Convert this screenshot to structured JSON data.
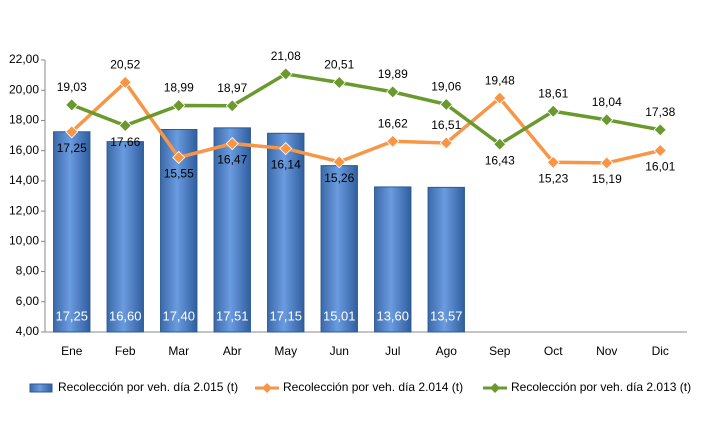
{
  "chart_data": {
    "type": "combo",
    "categories": [
      "Ene",
      "Feb",
      "Mar",
      "Abr",
      "May",
      "Jun",
      "Jul",
      "Ago",
      "Sep",
      "Oct",
      "Nov",
      "Dic"
    ],
    "ylim": [
      4,
      22
    ],
    "yticks": [
      {
        "value": 4,
        "label": "4,00"
      },
      {
        "value": 6,
        "label": "6,00"
      },
      {
        "value": 8,
        "label": "8,00"
      },
      {
        "value": 10,
        "label": "10,00"
      },
      {
        "value": 12,
        "label": "12,00"
      },
      {
        "value": 14,
        "label": "14,00"
      },
      {
        "value": 16,
        "label": "16,00"
      },
      {
        "value": 18,
        "label": "18,00"
      },
      {
        "value": 20,
        "label": "20,00"
      },
      {
        "value": 22,
        "label": "22,00"
      }
    ],
    "grid": false,
    "legend": "bottom",
    "series": [
      {
        "name": "Recolección por veh. día 2.015 (t)",
        "type": "bar",
        "color": "#4f81bd",
        "values": [
          17.25,
          16.6,
          17.4,
          17.51,
          17.15,
          15.01,
          13.6,
          13.57,
          null,
          null,
          null,
          null
        ],
        "value_labels": [
          "17,25",
          "16,60",
          "17,40",
          "17,51",
          "17,15",
          "15,01",
          "13,60",
          "13,57",
          null,
          null,
          null,
          null
        ]
      },
      {
        "name": "Recolección por veh. día 2.014 (t)",
        "type": "line",
        "color": "#f79646",
        "values": [
          17.25,
          20.52,
          15.55,
          16.47,
          16.14,
          15.26,
          16.62,
          16.51,
          19.48,
          15.23,
          15.19,
          16.01
        ],
        "value_labels": [
          "17,25",
          "20,52",
          "15,55",
          "16,47",
          "16,14",
          "15,26",
          "16,62",
          "16,51",
          "19,48",
          "15,23",
          "15,19",
          "16,01"
        ]
      },
      {
        "name": "Recolección por veh. día 2.013 (t)",
        "type": "line",
        "color": "#6a9a2e",
        "values": [
          19.03,
          17.66,
          18.99,
          18.97,
          21.08,
          20.51,
          19.89,
          19.06,
          16.43,
          18.61,
          18.04,
          17.38
        ],
        "value_labels": [
          "19,03",
          "17,66",
          "18,99",
          "18,97",
          "21,08",
          "20,51",
          "19,89",
          "19,06",
          "16,43",
          "18,61",
          "18,04",
          "17,38"
        ]
      }
    ]
  }
}
